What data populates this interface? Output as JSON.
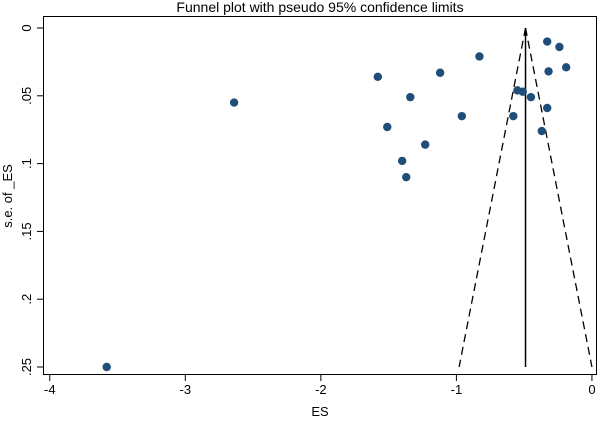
{
  "chart_data": {
    "type": "scatter",
    "title": "Funnel plot with pseudo 95% confidence limits",
    "xlabel": "ES",
    "ylabel": "s.e. of _ES",
    "xlim": [
      -4.05,
      0.03
    ],
    "ylim": [
      0,
      0.25
    ],
    "y_reversed": true,
    "grid": false,
    "legend": "none",
    "xticks": [
      -4,
      -3,
      -2,
      -1,
      0
    ],
    "yticks": [
      0,
      0.05,
      0.1,
      0.15,
      0.2,
      0.25
    ],
    "xtick_labels": [
      "-4",
      "-3",
      "-2",
      "-1",
      "0"
    ],
    "ytick_labels": [
      "0",
      ".05",
      ".1",
      ".15",
      ".2",
      ".25"
    ],
    "pooled_estimate": -0.49,
    "ci_multiplier": 1.96,
    "funnel_max_se": 0.25,
    "colors": {
      "points": "#1f4e79",
      "lines": "#000000",
      "frame": "#000000"
    },
    "points": [
      {
        "x": -3.58,
        "y": 0.25
      },
      {
        "x": -2.64,
        "y": 0.055
      },
      {
        "x": -1.58,
        "y": 0.036
      },
      {
        "x": -1.51,
        "y": 0.073
      },
      {
        "x": -1.4,
        "y": 0.098
      },
      {
        "x": -1.37,
        "y": 0.11
      },
      {
        "x": -1.34,
        "y": 0.051
      },
      {
        "x": -1.23,
        "y": 0.086
      },
      {
        "x": -1.12,
        "y": 0.033
      },
      {
        "x": -0.96,
        "y": 0.065
      },
      {
        "x": -0.83,
        "y": 0.021
      },
      {
        "x": -0.58,
        "y": 0.065
      },
      {
        "x": -0.55,
        "y": 0.046
      },
      {
        "x": -0.51,
        "y": 0.047
      },
      {
        "x": -0.45,
        "y": 0.051
      },
      {
        "x": -0.37,
        "y": 0.076
      },
      {
        "x": -0.33,
        "y": 0.01
      },
      {
        "x": -0.33,
        "y": 0.059
      },
      {
        "x": -0.32,
        "y": 0.032
      },
      {
        "x": -0.24,
        "y": 0.014
      },
      {
        "x": -0.19,
        "y": 0.029
      }
    ]
  }
}
